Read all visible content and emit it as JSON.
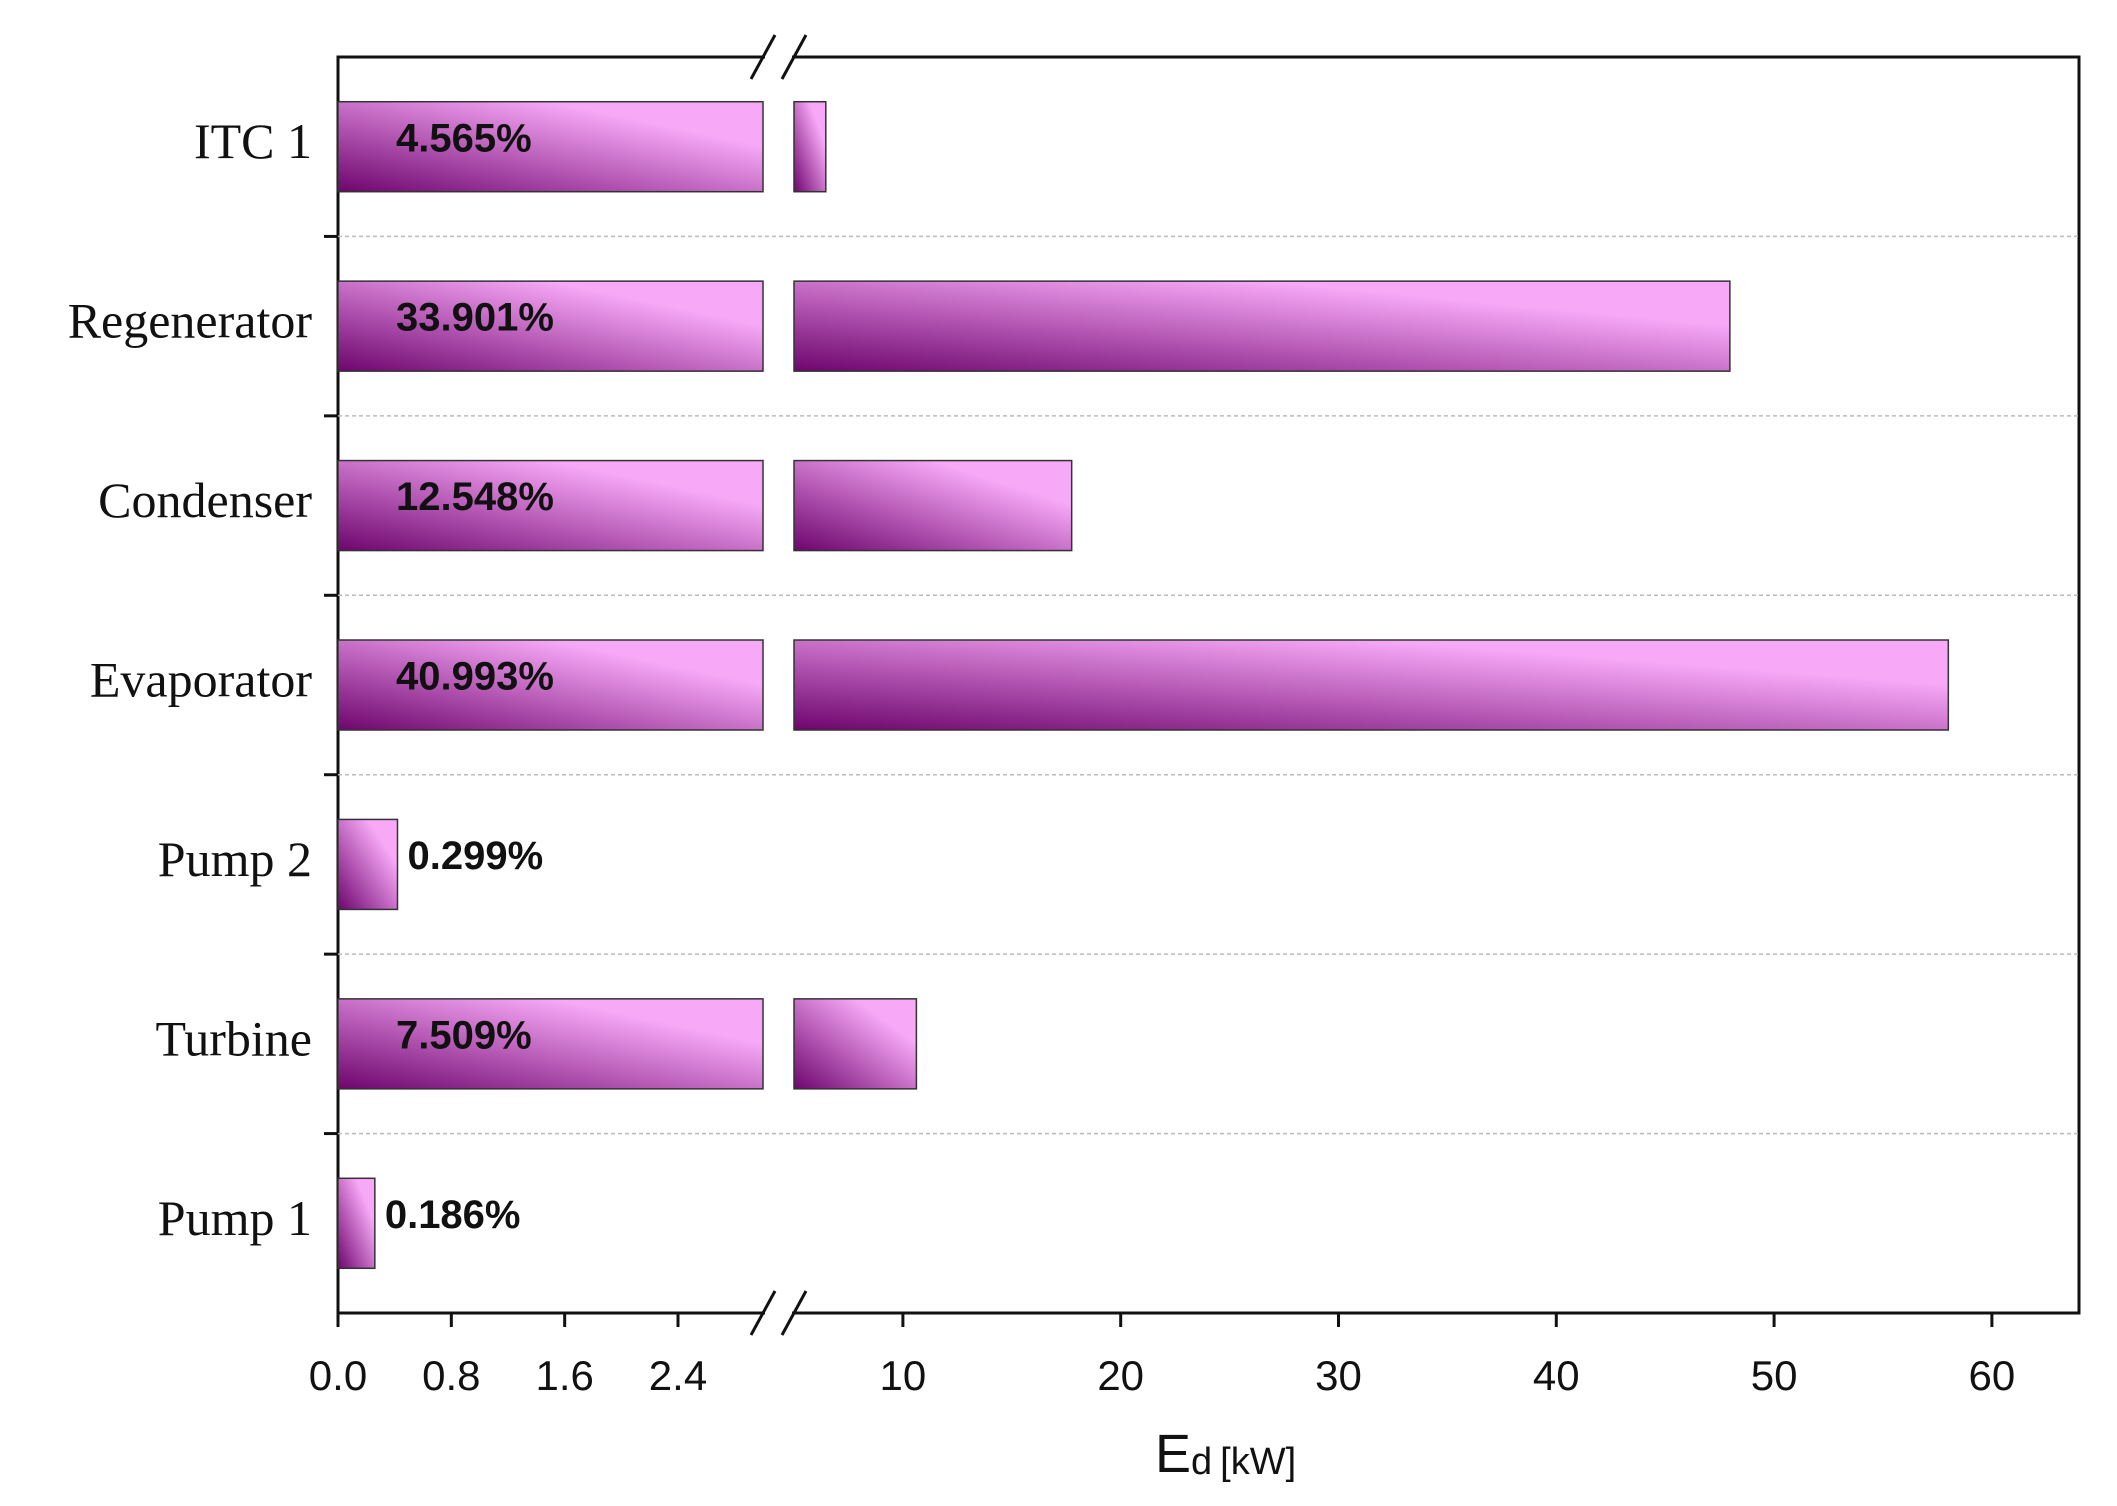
{
  "chart_data": {
    "type": "bar",
    "orientation": "horizontal",
    "categories": [
      "ITC 1",
      "Regenerator",
      "Condenser",
      "Evaporator",
      "Pump 2",
      "Turbine",
      "Pump 1"
    ],
    "values": [
      6.46,
      47.97,
      17.75,
      58.0,
      0.42,
      10.62,
      0.26
    ],
    "bar_labels": [
      "4.565%",
      "33.901%",
      "12.548%",
      "40.993%",
      "0.299%",
      "7.509%",
      "0.186%"
    ],
    "color_dark": "#6e056e",
    "color_light": "#f7a8f7",
    "xlim": [
      0,
      64
    ],
    "x_break": [
      3,
      5
    ],
    "xticks": [
      {
        "value": 0,
        "label": "0.0"
      },
      0.8,
      1.6,
      2.4,
      10,
      20,
      30,
      40,
      50,
      60
    ],
    "xlabel": "E",
    "xlabel_sub": "d",
    "xlabel_unit": "[kW]",
    "grid": true
  }
}
